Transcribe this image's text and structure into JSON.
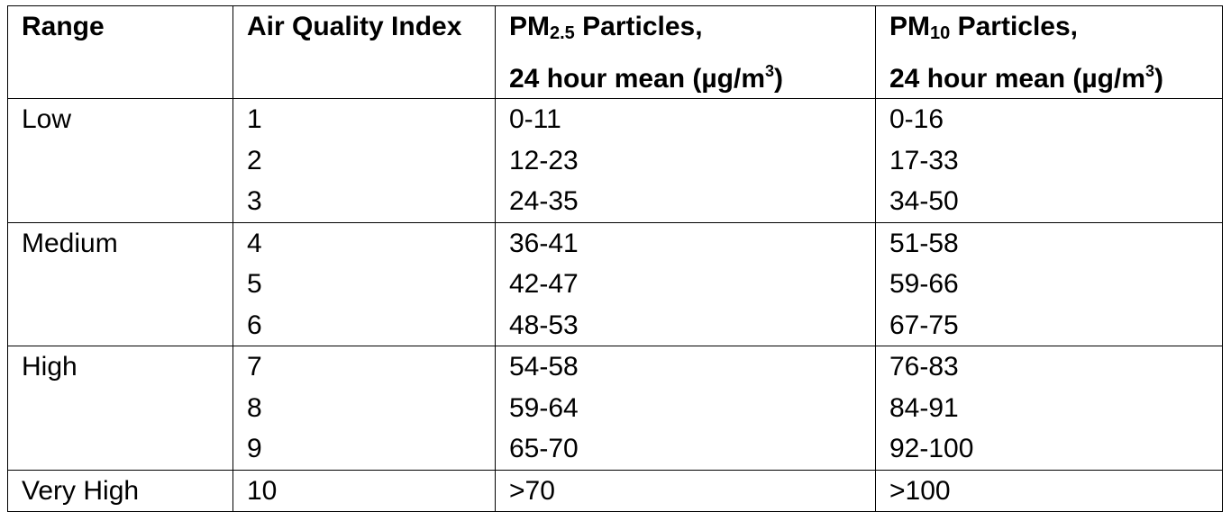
{
  "table": {
    "headers": {
      "range": "Range",
      "aqi": "Air Quality Index",
      "pm25": {
        "prefix": "PM",
        "sub": "2.5",
        "suffix": " Particles,",
        "line2_start": "24 hour mean (µg/m",
        "sup": "3",
        "line2_end": ")"
      },
      "pm10": {
        "prefix": "PM",
        "sub": "10",
        "suffix": " Particles,",
        "line2_start": "24 hour mean (µg/m",
        "sup": "3",
        "line2_end": ")"
      }
    },
    "rows": [
      {
        "range": "Low",
        "aqi": "1",
        "pm25": "0-11",
        "pm10": "0-16"
      },
      {
        "range": "",
        "aqi": "2",
        "pm25": "12-23",
        "pm10": "17-33"
      },
      {
        "range": "",
        "aqi": "3",
        "pm25": "24-35",
        "pm10": "34-50"
      },
      {
        "range": "Medium",
        "aqi": "4",
        "pm25": "36-41",
        "pm10": "51-58"
      },
      {
        "range": "",
        "aqi": "5",
        "pm25": "42-47",
        "pm10": "59-66"
      },
      {
        "range": "",
        "aqi": "6",
        "pm25": "48-53",
        "pm10": "67-75"
      },
      {
        "range": "High",
        "aqi": "7",
        "pm25": "54-58",
        "pm10": "76-83"
      },
      {
        "range": "",
        "aqi": "8",
        "pm25": "59-64",
        "pm10": "84-91"
      },
      {
        "range": "",
        "aqi": "9",
        "pm25": "65-70",
        "pm10": "92-100"
      },
      {
        "range": "Very High",
        "aqi": "10",
        "pm25": ">70",
        "pm10": ">100"
      }
    ]
  }
}
